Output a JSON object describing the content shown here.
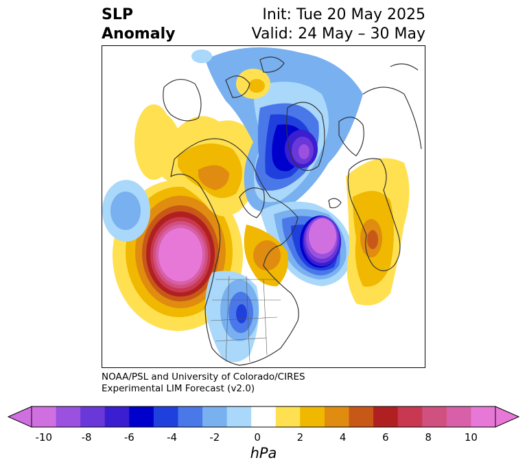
{
  "title": {
    "left_line1": "SLP",
    "left_line2": "Anomaly",
    "right_line1": "Init: Tue 20 May 2025",
    "right_line2": "Valid: 24 May – 30 May"
  },
  "credit": {
    "line1": "NOAA/PSL and University of Colorado/CIRES",
    "line2": "Experimental LIM Forecast (v2.0)"
  },
  "colorbar": {
    "unit": "hPa",
    "tick_labels": [
      "-10",
      "-8",
      "-6",
      "-4",
      "-2",
      "0",
      "2",
      "4",
      "6",
      "8",
      "10"
    ],
    "colors": [
      "#d070e0",
      "#9b50e0",
      "#6a38d8",
      "#3a1ed0",
      "#0000cc",
      "#2040dd",
      "#4a78e8",
      "#78b0f0",
      "#aad8fa",
      "#ffffff",
      "#ffe050",
      "#f0b800",
      "#e08c10",
      "#c85818",
      "#b02020",
      "#c83850",
      "#d05080",
      "#d860a8",
      "#e878d8"
    ]
  },
  "map": {
    "projection": "polar-stereographic",
    "region": "Northern Hemisphere (North America, Arctic, Europe)",
    "features": [
      {
        "name": "positive-anomaly-northeast-pacific",
        "sign": "positive",
        "peak_hpa": 10
      },
      {
        "name": "negative-anomaly-arctic",
        "sign": "negative",
        "peak_hpa": -8
      },
      {
        "name": "negative-anomaly-north-atlantic",
        "sign": "negative",
        "peak_hpa": -10
      },
      {
        "name": "negative-anomaly-central-us",
        "sign": "negative",
        "peak_hpa": -6
      },
      {
        "name": "positive-anomaly-europe",
        "sign": "positive",
        "peak_hpa": 5
      }
    ]
  }
}
